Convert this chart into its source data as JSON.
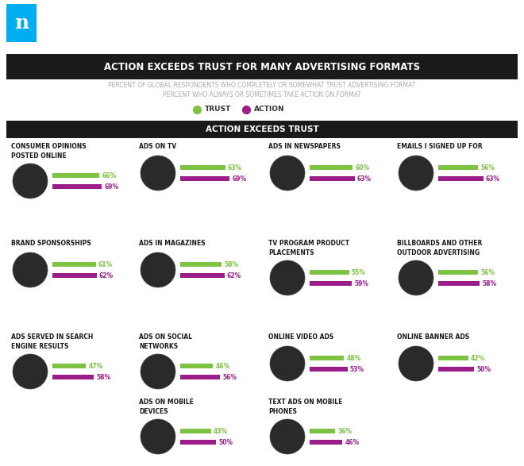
{
  "title": "ACTION EXCEEDS TRUST FOR MANY ADVERTISING FORMATS",
  "subtitle_line1": "PERCENT OF GLOBAL RESPONDENTS WHO COMPLETELY OR SOMEWHAT TRUST ADVERTISING FORMAT",
  "subtitle_line2": "PERCENT WHO ALWAYS OR SOMETIMES TAKE ACTION ON FORMAT",
  "section_header": "ACTION EXCEEDS TRUST",
  "legend_trust": "TRUST",
  "legend_action": "ACTION",
  "trust_color": "#7dc242",
  "action_color": "#9b1d8a",
  "bg_color": "#ffffff",
  "header_bg": "#1a1a1a",
  "header_text_color": "#ffffff",
  "subtitle_color": "#aaaaaa",
  "label_color": "#1a1a1a",
  "nielsen_blue": "#00aeef",
  "categories": [
    {
      "label": "CONSUMER OPINIONS\nPOSTED ONLINE",
      "trust": 66,
      "action": 69,
      "col": 0,
      "row": 0
    },
    {
      "label": "ADS ON TV",
      "trust": 63,
      "action": 69,
      "col": 1,
      "row": 0
    },
    {
      "label": "ADS IN NEWSPAPERS",
      "trust": 60,
      "action": 63,
      "col": 2,
      "row": 0
    },
    {
      "label": "EMAILS I SIGNED UP FOR",
      "trust": 56,
      "action": 63,
      "col": 3,
      "row": 0
    },
    {
      "label": "BRAND SPONSORSHIPS",
      "trust": 61,
      "action": 62,
      "col": 0,
      "row": 1
    },
    {
      "label": "ADS IN MAGAZINES",
      "trust": 58,
      "action": 62,
      "col": 1,
      "row": 1
    },
    {
      "label": "TV PROGRAM PRODUCT\nPLACEMENTS",
      "trust": 55,
      "action": 59,
      "col": 2,
      "row": 1
    },
    {
      "label": "BILLBOARDS AND OTHER\nOUTDOOR ADVERTISING",
      "trust": 56,
      "action": 58,
      "col": 3,
      "row": 1
    },
    {
      "label": "ADS SERVED IN SEARCH\nENGINE RESULTS",
      "trust": 47,
      "action": 58,
      "col": 0,
      "row": 2
    },
    {
      "label": "ADS ON SOCIAL\nNETWORKS",
      "trust": 46,
      "action": 56,
      "col": 1,
      "row": 2
    },
    {
      "label": "ONLINE VIDEO ADS",
      "trust": 48,
      "action": 53,
      "col": 2,
      "row": 2
    },
    {
      "label": "ONLINE BANNER ADS",
      "trust": 42,
      "action": 50,
      "col": 3,
      "row": 2
    },
    {
      "label": "ADS ON MOBILE\nDEVICES",
      "trust": 43,
      "action": 50,
      "col": 1,
      "row": 3
    },
    {
      "label": "TEXT ADS ON MOBILE\nPHONES",
      "trust": 36,
      "action": 46,
      "col": 2,
      "row": 3
    }
  ],
  "figsize": [
    6.6,
    5.87
  ],
  "dpi": 100
}
